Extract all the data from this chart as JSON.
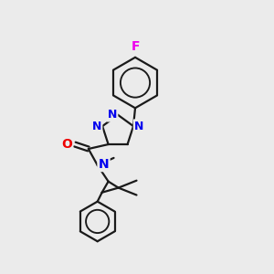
{
  "background_color": "#ebebeb",
  "bond_color": "#1a1a1a",
  "nitrogen_color": "#0000ee",
  "oxygen_color": "#ee0000",
  "fluorine_color": "#ee00ee",
  "line_width": 1.6,
  "font_size_atoms": 10,
  "fig_size": [
    3.0,
    3.0
  ],
  "dpi": 100,
  "xlim": [
    0,
    300
  ],
  "ylim": [
    0,
    300
  ]
}
